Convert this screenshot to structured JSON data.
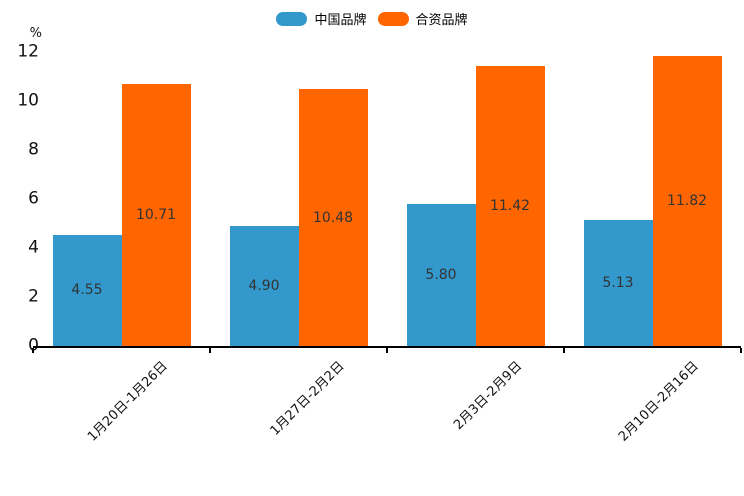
{
  "chart_data": {
    "type": "bar",
    "title": "",
    "unit_label": "%",
    "categories": [
      "1月20日-1月26日",
      "1月27日-2月2日",
      "2月3日-2月9日",
      "2月10日-2月16日"
    ],
    "series": [
      {
        "name": "中国品牌",
        "key": "china-brand",
        "color": "#3398CB",
        "values": [
          4.55,
          4.9,
          5.8,
          5.13
        ],
        "labels": [
          "4.55",
          "4.90",
          "5.80",
          "5.13"
        ]
      },
      {
        "name": "合资品牌",
        "key": "joint-venture-brand",
        "color": "#FF6600",
        "values": [
          10.71,
          10.48,
          11.42,
          11.82
        ],
        "labels": [
          "10.71",
          "10.48",
          "11.42",
          "11.82"
        ]
      }
    ],
    "ylim": [
      0,
      12
    ],
    "yticks": [
      0,
      2,
      4,
      6,
      8,
      10,
      12
    ],
    "grid": false,
    "legend_position": "top-center",
    "value_label_position": "inside-center",
    "xtick_rotation_deg": 45
  },
  "colors": {
    "background": "#ffffff",
    "axis": "#000000",
    "tick_text": "#111111",
    "value_text": "#333333"
  }
}
